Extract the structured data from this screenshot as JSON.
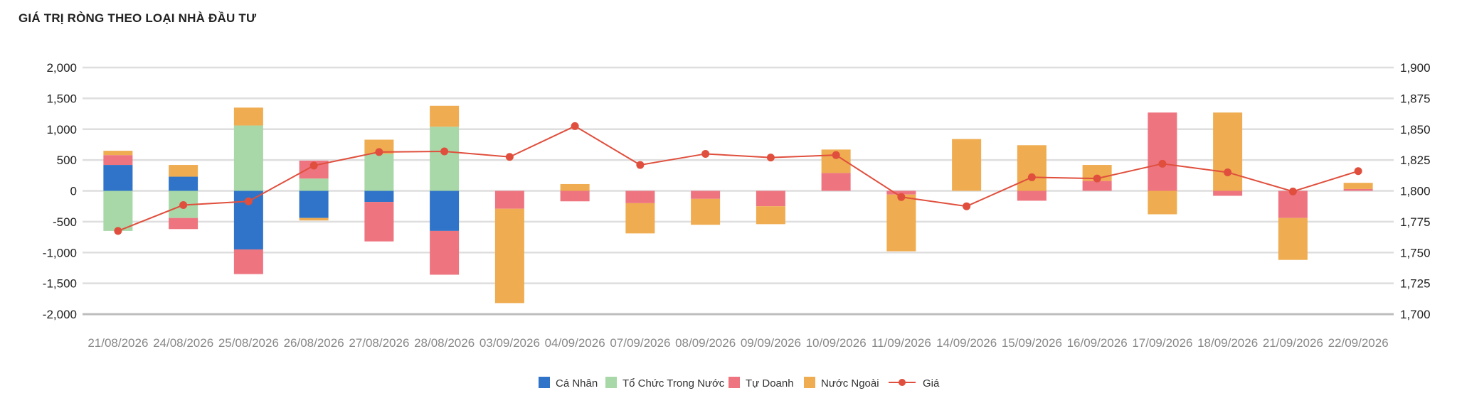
{
  "header": {
    "title": "GIÁ TRỊ RÒNG THEO LOẠI NHÀ ĐẦU TƯ"
  },
  "chart_data": {
    "type": "bar",
    "stacked": true,
    "categories": [
      "21/08/2026",
      "24/08/2026",
      "25/08/2026",
      "26/08/2026",
      "27/08/2026",
      "28/08/2026",
      "03/09/2026",
      "04/09/2026",
      "07/09/2026",
      "08/09/2026",
      "09/09/2026",
      "10/09/2026",
      "11/09/2026",
      "14/09/2026",
      "15/09/2026",
      "16/09/2026",
      "17/09/2026",
      "18/09/2026",
      "21/09/2026",
      "22/09/2026"
    ],
    "y_left": {
      "min": -2000,
      "max": 2000,
      "ticks": [
        -2000,
        -1500,
        -1000,
        -500,
        0,
        500,
        1000,
        1500,
        2000
      ],
      "tick_labels": [
        "-2,000",
        "-1,500",
        "-1,000",
        "-500",
        "0",
        "500",
        "1,000",
        "1,500",
        "2,000"
      ]
    },
    "y_right": {
      "min": 1700,
      "max": 1900,
      "ticks": [
        1700,
        1725,
        1750,
        1775,
        1800,
        1825,
        1850,
        1875,
        1900
      ],
      "tick_labels": [
        "1,700",
        "1,725",
        "1,750",
        "1,775",
        "1,800",
        "1,825",
        "1,850",
        "1,875",
        "1,900"
      ]
    },
    "grid": true,
    "legend_position": "bottom-center",
    "series": [
      {
        "name": "Cá Nhân",
        "type": "bar",
        "axis": "left",
        "color": "#2f74c8",
        "values": [
          420,
          230,
          -950,
          -440,
          -180,
          -650,
          0,
          0,
          0,
          0,
          0,
          0,
          0,
          0,
          0,
          0,
          0,
          0,
          0,
          0
        ]
      },
      {
        "name": "Tổ Chức Trong Nước",
        "type": "bar",
        "axis": "left",
        "color": "#a8d8a8",
        "values": [
          -650,
          -440,
          1060,
          200,
          600,
          1040,
          0,
          0,
          0,
          0,
          0,
          0,
          0,
          0,
          0,
          0,
          0,
          0,
          0,
          0
        ]
      },
      {
        "name": "Tự Doanh",
        "type": "bar",
        "axis": "left",
        "color": "#ee7480",
        "values": [
          160,
          -180,
          -400,
          290,
          -640,
          -710,
          -290,
          -170,
          -200,
          -130,
          -250,
          290,
          -60,
          0,
          -160,
          160,
          1270,
          -80,
          -440,
          30
        ]
      },
      {
        "name": "Nước Ngoài",
        "type": "bar",
        "axis": "left",
        "color": "#efac50",
        "values": [
          70,
          190,
          290,
          -40,
          230,
          340,
          -1530,
          110,
          -490,
          -420,
          -290,
          380,
          -920,
          840,
          740,
          260,
          -380,
          1270,
          -680,
          100
        ]
      },
      {
        "name": "Giá",
        "type": "line",
        "axis": "right",
        "color": "#e04f3d",
        "values": [
          1767.5,
          1788.5,
          1791.5,
          1820.5,
          1831.5,
          1832,
          1827.5,
          1852.5,
          1821,
          1830,
          1827,
          1829,
          1795,
          1787.5,
          1811,
          1810,
          1822,
          1815,
          1799.5,
          1816
        ]
      }
    ]
  }
}
